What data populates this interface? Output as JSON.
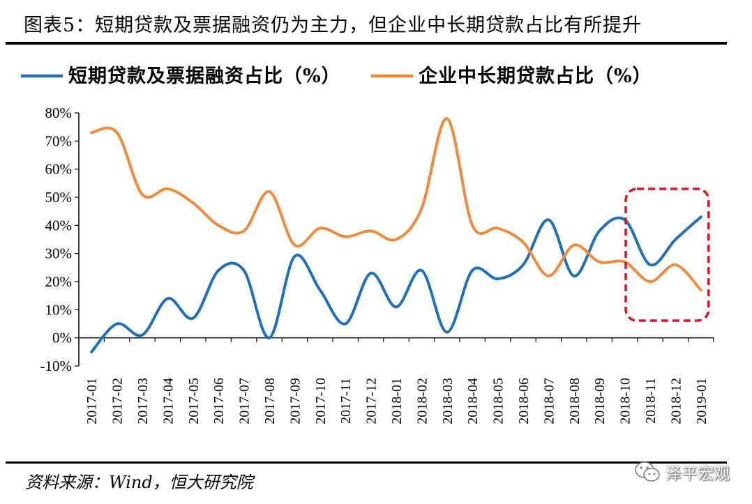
{
  "figure": {
    "title": "图表5：短期贷款及票据融资仍为主力，但企业中长期贷款占比有所提升",
    "source": "资料来源：Wind，恒大研究院",
    "watermark": "泽平宏观",
    "watermark_icon": "wechat-icon"
  },
  "chart_data": {
    "type": "line",
    "title": "",
    "xlabel": "",
    "ylabel": "",
    "ylim": [
      -10,
      80
    ],
    "yticks": [
      -10,
      0,
      10,
      20,
      30,
      40,
      50,
      60,
      70,
      80
    ],
    "ytick_labels": [
      "-10%",
      "0%",
      "10%",
      "20%",
      "30%",
      "40%",
      "50%",
      "60%",
      "70%",
      "80%"
    ],
    "legend_position": "top",
    "grid": false,
    "categories": [
      "2017-01",
      "2017-02",
      "2017-03",
      "2017-04",
      "2017-05",
      "2017-06",
      "2017-07",
      "2017-08",
      "2017-09",
      "2017-10",
      "2017-11",
      "2017-12",
      "2018-01",
      "2018-02",
      "2018-03",
      "2018-04",
      "2018-05",
      "2018-06",
      "2018-07",
      "2018-08",
      "2018-09",
      "2018-10",
      "2018-11",
      "2018-12",
      "2019-01"
    ],
    "series": [
      {
        "name": "短期贷款及票据融资占比（%）",
        "color": "#1f6fba",
        "values": [
          -5,
          5,
          1,
          14,
          7,
          24,
          24,
          0,
          29,
          17,
          5,
          23,
          11,
          24,
          2,
          24,
          21,
          26,
          42,
          22,
          38,
          42,
          26,
          35,
          43
        ]
      },
      {
        "name": "企业中长期贷款占比（%）",
        "color": "#f08a3c",
        "values": [
          73,
          73,
          51,
          53,
          48,
          40,
          38,
          52,
          33,
          39,
          36,
          38,
          35,
          46,
          78,
          40,
          39,
          34,
          22,
          33,
          27,
          27,
          20,
          26,
          17
        ]
      }
    ],
    "highlight": {
      "shape": "dashed-rounded-rect",
      "color": "#e0141e",
      "from": "2018-11",
      "to": "2019-01"
    }
  }
}
